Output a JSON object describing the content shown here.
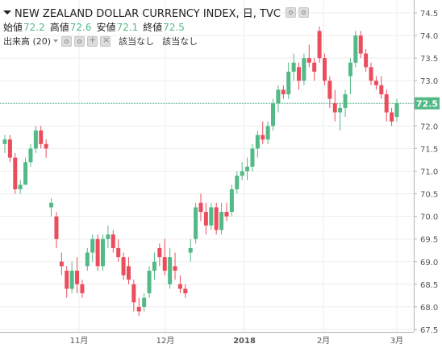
{
  "legend": {
    "symbol": "NEW ZEALAND DOLLAR CURRENCY INDEX, 日, TVC",
    "ohlc": [
      {
        "label": "始値",
        "value": "72.2"
      },
      {
        "label": "高値",
        "value": "72.6"
      },
      {
        "label": "安値",
        "value": "72.1"
      },
      {
        "label": "終値",
        "value": "72.5"
      }
    ],
    "volume_label": "出来高 (20)",
    "volume_values": [
      "該当なし",
      "該当なし"
    ]
  },
  "last_price_label": "72.5",
  "colors": {
    "up": "#53b987",
    "down": "#eb4d5c",
    "price_line": "#53b987",
    "grid": "#eeeeee",
    "axis": "#b5b5b5"
  },
  "chart_data": {
    "type": "candlestick",
    "title": "NEW ZEALAND DOLLAR CURRENCY INDEX, 日, TVC",
    "ylim": [
      67.5,
      74.5
    ],
    "yticks": [
      "74.5",
      "74.0",
      "73.5",
      "73.0",
      "72.5",
      "72.0",
      "71.5",
      "71.0",
      "70.5",
      "70.0",
      "69.5",
      "69.0",
      "68.5",
      "68.0",
      "67.5"
    ],
    "x_tick_labels": [
      "11月",
      "12月",
      "2018",
      "2月",
      "3月"
    ],
    "last_price": 72.5,
    "candles": [
      [
        71.6,
        71.8,
        71.4,
        71.7
      ],
      [
        71.7,
        71.8,
        71.2,
        71.3
      ],
      [
        71.3,
        71.4,
        70.5,
        70.6
      ],
      [
        70.6,
        70.8,
        70.5,
        70.7
      ],
      [
        70.7,
        71.3,
        70.7,
        71.2
      ],
      [
        71.2,
        71.6,
        71.1,
        71.5
      ],
      [
        71.5,
        72.0,
        71.4,
        71.9
      ],
      [
        71.9,
        72.0,
        71.5,
        71.6
      ],
      [
        71.6,
        71.7,
        71.3,
        71.5
      ],
      [
        70.2,
        70.4,
        70.0,
        70.3
      ],
      [
        70.0,
        70.1,
        69.3,
        69.5
      ],
      [
        69.0,
        69.2,
        68.7,
        68.9
      ],
      [
        68.8,
        68.9,
        68.2,
        68.4
      ],
      [
        68.4,
        69.0,
        68.3,
        68.8
      ],
      [
        68.8,
        69.1,
        68.3,
        68.5
      ],
      [
        68.5,
        68.6,
        68.2,
        68.3
      ],
      [
        68.9,
        69.3,
        68.8,
        69.2
      ],
      [
        69.2,
        69.6,
        69.0,
        69.5
      ],
      [
        69.5,
        69.6,
        68.8,
        68.9
      ],
      [
        68.9,
        69.6,
        68.8,
        69.5
      ],
      [
        69.5,
        69.8,
        69.3,
        69.6
      ],
      [
        69.6,
        69.7,
        69.2,
        69.3
      ],
      [
        69.3,
        69.5,
        69.0,
        69.1
      ],
      [
        69.1,
        69.2,
        68.6,
        68.7
      ],
      [
        68.9,
        69.1,
        68.5,
        68.6
      ],
      [
        68.5,
        68.6,
        67.9,
        68.1
      ],
      [
        68.0,
        68.2,
        67.8,
        67.9
      ],
      [
        68.0,
        68.3,
        67.9,
        68.2
      ],
      [
        68.3,
        68.9,
        68.2,
        68.8
      ],
      [
        68.8,
        69.2,
        68.6,
        69.0
      ],
      [
        69.3,
        69.4,
        68.9,
        69.1
      ],
      [
        69.1,
        69.5,
        68.7,
        68.8
      ],
      [
        68.5,
        69.3,
        68.4,
        69.1
      ],
      [
        68.9,
        69.2,
        68.6,
        68.8
      ],
      [
        68.5,
        68.7,
        68.3,
        68.4
      ],
      [
        68.4,
        68.5,
        68.2,
        68.3
      ],
      [
        69.2,
        69.5,
        69.0,
        69.3
      ],
      [
        69.5,
        70.3,
        69.4,
        70.2
      ],
      [
        70.3,
        70.5,
        69.9,
        70.1
      ],
      [
        70.1,
        70.3,
        69.6,
        69.8
      ],
      [
        69.8,
        70.3,
        69.7,
        70.2
      ],
      [
        70.2,
        70.3,
        69.6,
        69.7
      ],
      [
        69.7,
        70.3,
        69.6,
        70.1
      ],
      [
        70.1,
        70.3,
        69.9,
        70.0
      ],
      [
        70.1,
        70.7,
        70.0,
        70.6
      ],
      [
        70.6,
        71.0,
        70.5,
        70.9
      ],
      [
        70.9,
        71.2,
        70.8,
        71.0
      ],
      [
        71.0,
        71.3,
        70.8,
        71.1
      ],
      [
        71.1,
        71.6,
        71.0,
        71.5
      ],
      [
        71.5,
        71.9,
        71.3,
        71.8
      ],
      [
        71.8,
        72.1,
        71.6,
        71.7
      ],
      [
        71.7,
        72.1,
        71.6,
        72.0
      ],
      [
        72.0,
        72.6,
        71.9,
        72.5
      ],
      [
        72.5,
        72.9,
        72.3,
        72.8
      ],
      [
        72.8,
        72.9,
        72.6,
        72.7
      ],
      [
        72.7,
        73.4,
        72.6,
        73.2
      ],
      [
        73.2,
        73.6,
        73.0,
        73.4
      ],
      [
        73.3,
        73.4,
        72.8,
        73.0
      ],
      [
        73.0,
        73.6,
        72.9,
        73.5
      ],
      [
        73.5,
        73.8,
        73.3,
        73.4
      ],
      [
        73.4,
        73.5,
        73.0,
        73.2
      ],
      [
        74.1,
        74.2,
        73.4,
        73.5
      ],
      [
        73.5,
        73.6,
        72.9,
        73.0
      ],
      [
        73.0,
        73.1,
        72.4,
        72.6
      ],
      [
        72.5,
        72.8,
        72.1,
        72.3
      ],
      [
        72.3,
        72.5,
        71.9,
        72.4
      ],
      [
        72.4,
        72.8,
        72.2,
        72.7
      ],
      [
        73.1,
        73.5,
        72.7,
        73.4
      ],
      [
        73.4,
        74.1,
        73.3,
        74.0
      ],
      [
        74.0,
        74.1,
        73.5,
        73.6
      ],
      [
        73.6,
        73.7,
        73.2,
        73.3
      ],
      [
        73.3,
        73.4,
        72.9,
        73.0
      ],
      [
        73.0,
        73.1,
        72.8,
        72.9
      ],
      [
        72.9,
        73.1,
        72.6,
        72.7
      ],
      [
        72.7,
        72.8,
        72.1,
        72.3
      ],
      [
        72.3,
        72.4,
        72.0,
        72.1
      ],
      [
        72.2,
        72.6,
        72.1,
        72.5
      ]
    ]
  }
}
